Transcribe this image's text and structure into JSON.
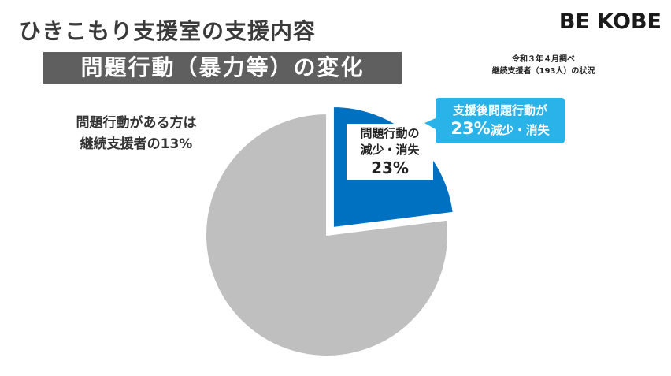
{
  "header": {
    "title": "ひきこもり支援室の支援内容",
    "subtitle": "問題行動（暴力等）の変化",
    "logo": "BE KOBE"
  },
  "survey_note": {
    "line1": "令和３年４月調べ",
    "line2": "継続支援者（193人）の状況"
  },
  "chart_data": {
    "type": "pie",
    "slices": [
      {
        "label": "問題行動の減少・消失",
        "value": 23,
        "color": "#0070c0",
        "exploded": true
      },
      {
        "label": "",
        "value": 77,
        "color": "#bfbfbf",
        "exploded": false
      }
    ],
    "start_angle_deg": 0,
    "direction": "clockwise"
  },
  "labels": {
    "remaining": {
      "line1": "問題行動がある方は",
      "line2": "継続支援者の13%"
    },
    "reduced": {
      "line1": "問題行動の",
      "line2": "減少・消失",
      "line3": "23%"
    },
    "callout": {
      "line1": "支援後問題行動が",
      "pct": "23%",
      "rest": "減少・消失"
    }
  },
  "colors": {
    "accent_blue": "#0070c0",
    "callout_blue": "#2ab3e8",
    "pie_gray": "#bfbfbf",
    "subtitle_bg": "#5f5f5f"
  }
}
